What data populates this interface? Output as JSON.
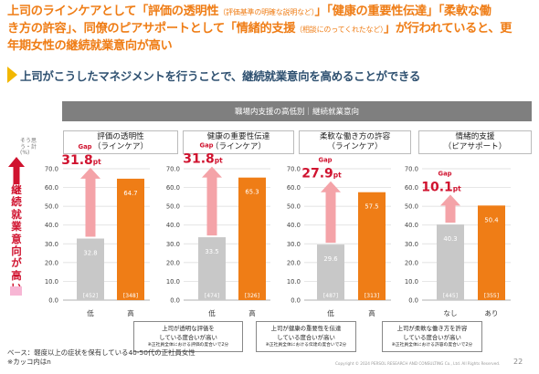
{
  "headline": {
    "line1_a": "上司のラインケアとして「評価の透明性",
    "line1_b": "（評価基準の明確な説明など）",
    "line1_c": "」「健康の重要性伝達」「柔軟な働",
    "line2_a": "き方の許容」、同僚のピアサポートとして「情緒的支援",
    "line2_b": "（相談にのってくれたなど）",
    "line2_c": "」が行われていると、更",
    "line3": "年期女性の継続就業意向が高い"
  },
  "subhead": "上司がこうしたマネジメントを行うことで、継続就業意向を高めることができる",
  "band": "職場内支援の高低別｜継続就業意向",
  "side_label": "継続就業意向が高い",
  "y_unit": "そう思う・計\n(%)",
  "colors": {
    "gray": "#c8c8c8",
    "orange": "#ef7d16",
    "red": "#d0132f",
    "pink": "#f4a3a8",
    "grid": "#d9d9d9"
  },
  "chart_data": [
    {
      "type": "bar",
      "title_line1": "評価の透明性",
      "title_line2": "（ラインケア）",
      "categories": [
        "低",
        "高"
      ],
      "values": [
        32.8,
        64.7
      ],
      "value_labels": [
        "32.8",
        "64.7"
      ],
      "n_labels": [
        "[452]",
        "[348]"
      ],
      "gap_label": "Gap",
      "gap_value": "31.8",
      "gap_unit": "pt",
      "ylim": [
        0,
        70
      ],
      "yticks": [
        "0.0",
        "10.0",
        "20.0",
        "30.0",
        "40.0",
        "50.0",
        "60.0",
        "70.0"
      ]
    },
    {
      "type": "bar",
      "title_line1": "健康の重要性伝達",
      "title_line2": "（ラインケア）",
      "categories": [
        "低",
        "高"
      ],
      "values": [
        33.5,
        65.3
      ],
      "value_labels": [
        "33.5",
        "65.3"
      ],
      "n_labels": [
        "[474]",
        "[326]"
      ],
      "gap_label": "Gap",
      "gap_value": "31.8",
      "gap_unit": "pt",
      "ylim": [
        0,
        70
      ],
      "yticks": [
        "0.0",
        "10.0",
        "20.0",
        "30.0",
        "40.0",
        "50.0",
        "60.0",
        "70.0"
      ]
    },
    {
      "type": "bar",
      "title_line1": "柔軟な働き方の許容",
      "title_line2": "（ラインケア）",
      "categories": [
        "低",
        "高"
      ],
      "values": [
        29.6,
        57.5
      ],
      "value_labels": [
        "29.6",
        "57.5"
      ],
      "n_labels": [
        "[487]",
        "[313]"
      ],
      "gap_label": "Gap",
      "gap_value": "27.9",
      "gap_unit": "pt",
      "ylim": [
        0,
        70
      ],
      "yticks": [
        "0.0",
        "10.0",
        "20.0",
        "30.0",
        "40.0",
        "50.0",
        "60.0",
        "70.0"
      ]
    },
    {
      "type": "bar",
      "title_line1": "情緒的支援",
      "title_line2": "（ピアサポート）",
      "categories": [
        "なし",
        "あり"
      ],
      "values": [
        40.3,
        50.4
      ],
      "value_labels": [
        "40.3",
        "50.4"
      ],
      "n_labels": [
        "[445]",
        "[355]"
      ],
      "gap_label": "Gap",
      "gap_value": "10.1",
      "gap_unit": "pt",
      "ylim": [
        0,
        70
      ],
      "yticks": [
        "0.0",
        "10.0",
        "20.0",
        "30.0",
        "40.0",
        "50.0",
        "60.0",
        "70.0"
      ]
    }
  ],
  "callouts": [
    {
      "line1": "上司が透明な評価を",
      "line2": "している度合いが高い",
      "note": "※正社員全体における評価の度合いで2分"
    },
    {
      "line1": "上司が健康の重要性を伝達",
      "line2": "している度合いが高い",
      "note": "※正社員全体における伝達の度合いで2分"
    },
    {
      "line1": "上司が柔軟な働き方を許容",
      "line2": "している度合いが高い",
      "note": "※正社員全体における許容の度合いで2分"
    }
  ],
  "footnote_line1": "ベース：軽度以上の症状を保有している40-50代の正社員女性",
  "footnote_line2": "※カッコ内はn",
  "copyright": "Copyright © 2024 PERSOL RESEARCH AND CONSULTING Co., Ltd. All Rights Reserved.",
  "page_number": "22"
}
